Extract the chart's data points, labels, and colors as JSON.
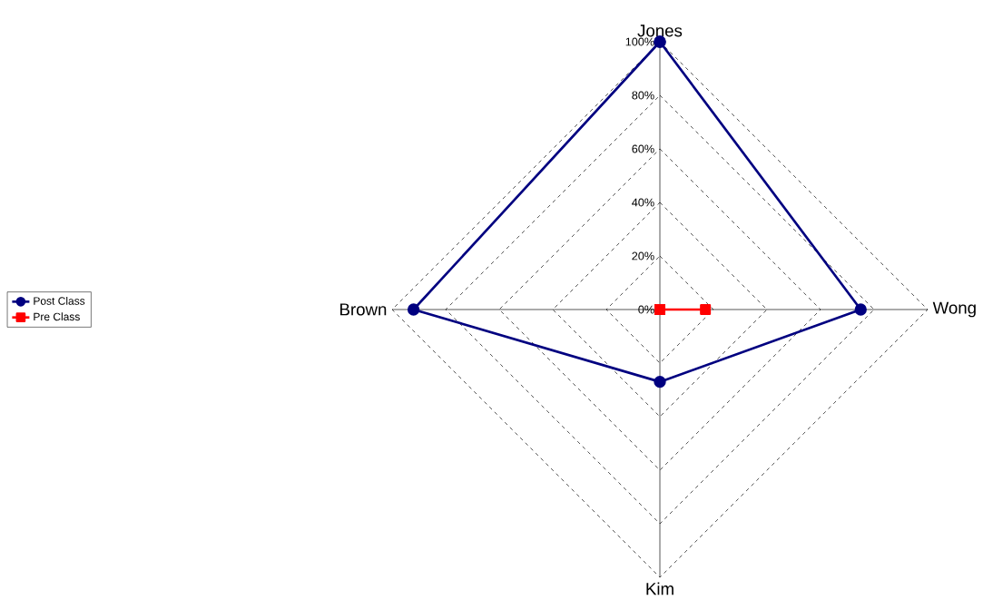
{
  "chart_data": {
    "type": "radar",
    "categories": [
      "Jones",
      "Wong",
      "Kim",
      "Brown"
    ],
    "series": [
      {
        "name": "Post Class",
        "color": "#000080",
        "marker": "circle",
        "values": [
          100,
          75,
          27,
          92
        ]
      },
      {
        "name": "Pre Class",
        "color": "#ff0000",
        "marker": "square",
        "values": [
          0,
          17,
          0,
          0
        ]
      }
    ],
    "ylim": [
      0,
      100
    ],
    "yticks": [
      {
        "value": 0,
        "label": "0%"
      },
      {
        "value": 20,
        "label": "20%"
      },
      {
        "value": 40,
        "label": "40%"
      },
      {
        "value": 60,
        "label": "60%"
      },
      {
        "value": 80,
        "label": "80%"
      },
      {
        "value": 100,
        "label": "100%"
      }
    ],
    "grid": true,
    "legend": "left"
  }
}
